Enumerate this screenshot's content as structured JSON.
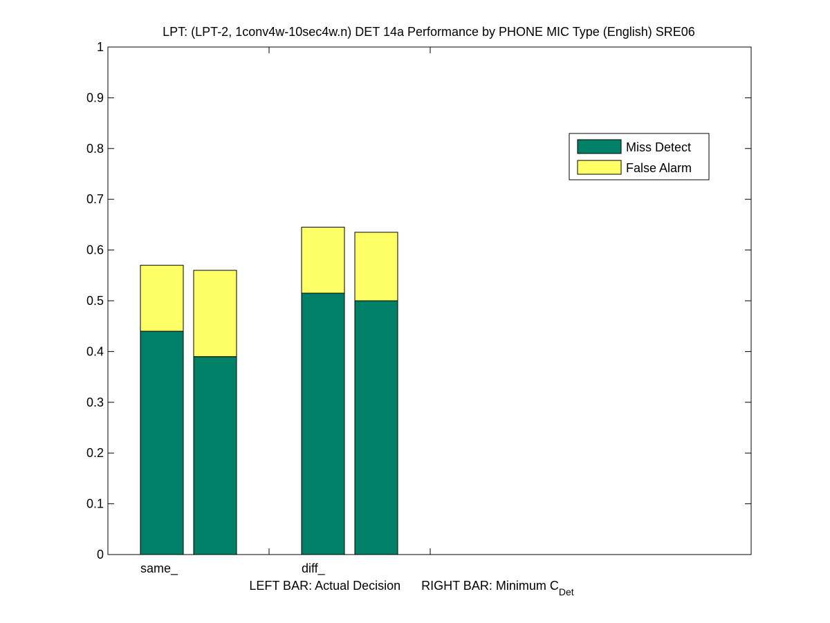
{
  "chart_data": {
    "type": "bar",
    "stacked": true,
    "title": "LPT: (LPT-2, 1conv4w-10sec4w.n) DET 14a Performance by PHONE MIC Type (English) SRE06",
    "xlabel": {
      "left": "LEFT BAR: Actual Decision",
      "right": "RIGHT BAR: Minimum C",
      "right_subscript": "Det"
    },
    "ylabel": "",
    "ylim": [
      0,
      1
    ],
    "yticks": [
      "0",
      "0.1",
      "0.2",
      "0.3",
      "0.4",
      "0.5",
      "0.6",
      "0.7",
      "0.8",
      "0.9",
      "1"
    ],
    "categories": [
      "same_",
      "diff_"
    ],
    "bar_roles": [
      "Actual Decision",
      "Minimum CDet"
    ],
    "series": [
      {
        "name": "Miss Detect",
        "color": "#008066",
        "values": [
          [
            0.44,
            0.39
          ],
          [
            0.515,
            0.5
          ]
        ]
      },
      {
        "name": "False Alarm",
        "color": "#FFFF66",
        "values": [
          [
            0.13,
            0.17
          ],
          [
            0.13,
            0.135
          ]
        ]
      }
    ],
    "legend": {
      "position": "top-right",
      "entries": [
        "Miss Detect",
        "False Alarm"
      ]
    },
    "grid": false
  }
}
